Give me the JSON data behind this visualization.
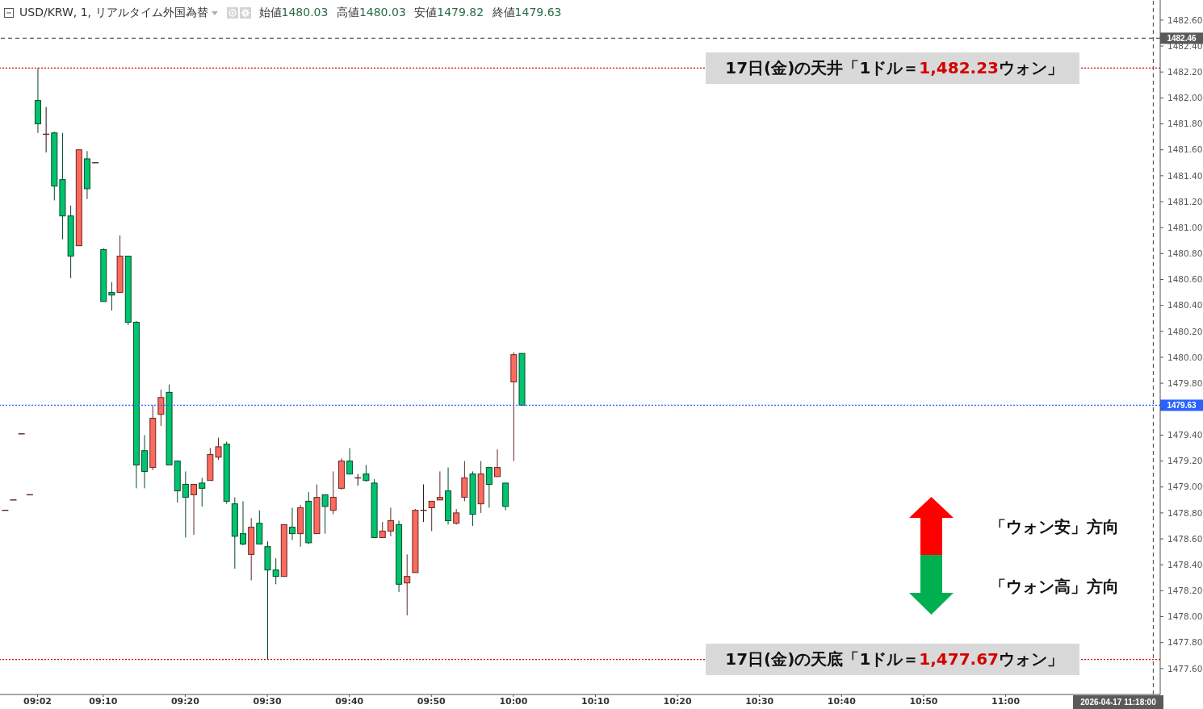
{
  "chart_data": {
    "type": "candlestick",
    "title": "USD/KRW, 1, リアルタイム外国為替",
    "subtitle": "始値1480.03 高値1480.03 安値1479.82 終値1479.63",
    "x": [
      8.9667,
      8.9833,
      9.0,
      9.0167,
      9.0333,
      9.05,
      9.0667,
      9.0833,
      9.1,
      9.1167,
      9.1333,
      9.15,
      9.1667,
      9.1833,
      9.2,
      9.2167,
      9.2333,
      9.25,
      9.2667,
      9.2833,
      9.3,
      9.3167,
      9.3333,
      9.35,
      9.3667,
      9.3833,
      9.4,
      9.4167,
      9.4333,
      9.45,
      9.4667,
      9.4833,
      9.5,
      9.5167,
      9.5333,
      9.55,
      9.5667,
      9.5833,
      9.6,
      9.6167,
      9.6333,
      9.65,
      9.6667,
      9.6833,
      9.7,
      9.7167,
      9.7333,
      9.75,
      9.7667,
      9.7833,
      9.8,
      9.8167,
      9.8333,
      9.85,
      9.8667,
      9.8833,
      9.9,
      9.9167,
      9.9333,
      9.95,
      9.9667,
      9.9833,
      10.0,
      10.0167
    ],
    "ohlc": [
      [
        1478.82,
        1478.82,
        1478.82,
        1478.82
      ],
      [
        1478.9,
        1478.9,
        1478.9,
        1478.9
      ],
      [
        1479.41,
        1479.41,
        1479.41,
        1479.41
      ],
      [
        1478.94,
        1478.94,
        1478.94,
        1478.94
      ],
      [
        1481.98,
        1482.23,
        1481.73,
        1481.8
      ],
      [
        1481.72,
        1481.93,
        1481.58,
        1481.72
      ],
      [
        1481.73,
        1481.74,
        1481.21,
        1481.32
      ],
      [
        1481.37,
        1481.73,
        1480.91,
        1481.09
      ],
      [
        1481.09,
        1481.17,
        1480.61,
        1480.78
      ],
      [
        1480.86,
        1481.6,
        1480.86,
        1481.6
      ],
      [
        1481.53,
        1481.59,
        1481.22,
        1481.3
      ],
      [
        1481.5,
        1481.5,
        1481.5,
        1481.5
      ],
      [
        1480.83,
        1480.84,
        1480.43,
        1480.43
      ],
      [
        1480.5,
        1480.58,
        1480.36,
        1480.48
      ],
      [
        1480.5,
        1480.94,
        1480.5,
        1480.78
      ],
      [
        1480.78,
        1480.78,
        1480.25,
        1480.27
      ],
      [
        1480.27,
        1480.28,
        1478.99,
        1479.17
      ],
      [
        1479.28,
        1479.4,
        1478.99,
        1479.12
      ],
      [
        1479.15,
        1479.63,
        1479.13,
        1479.53
      ],
      [
        1479.56,
        1479.75,
        1479.47,
        1479.69
      ],
      [
        1479.73,
        1479.79,
        1479.17,
        1479.17
      ],
      [
        1479.2,
        1479.2,
        1478.88,
        1478.97
      ],
      [
        1479.02,
        1479.12,
        1478.61,
        1478.92
      ],
      [
        1478.94,
        1479.02,
        1478.63,
        1479.02
      ],
      [
        1479.03,
        1479.07,
        1478.85,
        1478.99
      ],
      [
        1479.05,
        1479.3,
        1479.05,
        1479.25
      ],
      [
        1479.23,
        1479.38,
        1479.21,
        1479.31
      ],
      [
        1479.33,
        1479.35,
        1478.87,
        1478.89
      ],
      [
        1478.87,
        1478.92,
        1478.37,
        1478.62
      ],
      [
        1478.64,
        1478.89,
        1478.55,
        1478.56
      ],
      [
        1478.48,
        1478.76,
        1478.28,
        1478.69
      ],
      [
        1478.72,
        1478.82,
        1478.56,
        1478.56
      ],
      [
        1478.54,
        1478.58,
        1477.67,
        1478.36
      ],
      [
        1478.36,
        1478.45,
        1478.25,
        1478.31
      ],
      [
        1478.31,
        1478.71,
        1478.31,
        1478.71
      ],
      [
        1478.69,
        1478.84,
        1478.59,
        1478.64
      ],
      [
        1478.64,
        1478.86,
        1478.54,
        1478.84
      ],
      [
        1478.89,
        1478.96,
        1478.56,
        1478.57
      ],
      [
        1478.64,
        1479.02,
        1478.64,
        1478.92
      ],
      [
        1478.94,
        1478.94,
        1478.64,
        1478.85
      ],
      [
        1478.82,
        1479.12,
        1478.79,
        1478.92
      ],
      [
        1478.99,
        1479.22,
        1478.98,
        1479.2
      ],
      [
        1479.2,
        1479.3,
        1479.1,
        1479.1
      ],
      [
        1479.07,
        1479.1,
        1479.01,
        1479.07
      ],
      [
        1479.1,
        1479.17,
        1479.04,
        1479.05
      ],
      [
        1479.03,
        1479.06,
        1478.61,
        1478.61
      ],
      [
        1478.61,
        1478.73,
        1478.61,
        1478.66
      ],
      [
        1478.66,
        1478.84,
        1478.62,
        1478.74
      ],
      [
        1478.71,
        1478.74,
        1478.19,
        1478.25
      ],
      [
        1478.26,
        1478.48,
        1478.01,
        1478.31
      ],
      [
        1478.34,
        1478.83,
        1478.34,
        1478.82
      ],
      [
        1478.82,
        1479.02,
        1478.73,
        1478.82
      ],
      [
        1478.84,
        1478.89,
        1478.66,
        1478.89
      ],
      [
        1478.9,
        1479.12,
        1478.9,
        1478.92
      ],
      [
        1478.97,
        1479.15,
        1478.71,
        1478.74
      ],
      [
        1478.72,
        1478.83,
        1478.71,
        1478.8
      ],
      [
        1478.92,
        1479.2,
        1478.89,
        1479.07
      ],
      [
        1479.1,
        1479.12,
        1478.7,
        1478.79
      ],
      [
        1478.87,
        1479.2,
        1478.8,
        1479.1
      ],
      [
        1479.15,
        1479.15,
        1478.84,
        1479.02
      ],
      [
        1479.08,
        1479.29,
        1479.08,
        1479.15
      ],
      [
        1479.03,
        1479.03,
        1478.82,
        1478.85
      ],
      [
        1479.81,
        1480.04,
        1479.2,
        1480.02
      ],
      [
        1480.03,
        1480.03,
        1479.63,
        1479.63
      ]
    ],
    "colors": [
      "#5e2420",
      "#5e2420",
      "#5e2420",
      "#5e2420",
      "#00c46e",
      "#5e2420",
      "#00c46e",
      "#00c46e",
      "#00c46e",
      "#ff6a5e",
      "#00c46e",
      "#5e2420",
      "#00c46e",
      "#00c46e",
      "#ff6a5e",
      "#00c46e",
      "#00c46e",
      "#00c46e",
      "#ff6a5e",
      "#ff6a5e",
      "#00c46e",
      "#00c46e",
      "#00c46e",
      "#ff6a5e",
      "#00c46e",
      "#ff6a5e",
      "#ff6a5e",
      "#00c46e",
      "#00c46e",
      "#00c46e",
      "#ff6a5e",
      "#00c46e",
      "#00c46e",
      "#00c46e",
      "#ff6a5e",
      "#00c46e",
      "#ff6a5e",
      "#00c46e",
      "#ff6a5e",
      "#00c46e",
      "#ff6a5e",
      "#ff6a5e",
      "#00c46e",
      "#5e2420",
      "#00c46e",
      "#00c46e",
      "#ff6a5e",
      "#ff6a5e",
      "#00c46e",
      "#ff6a5e",
      "#ff6a5e",
      "#5e2420",
      "#ff6a5e",
      "#ff6a5e",
      "#00c46e",
      "#ff6a5e",
      "#ff6a5e",
      "#00c46e",
      "#ff6a5e",
      "#00c46e",
      "#ff6a5e",
      "#00c46e",
      "#ff6a5e",
      "#00c46e"
    ],
    "xlim": [
      8.957,
      11.314
    ],
    "xticks": [
      {
        "value": 9.0333,
        "label": "09:02"
      },
      {
        "value": 9.1667,
        "label": "09:10"
      },
      {
        "value": 9.3333,
        "label": "09:20"
      },
      {
        "value": 9.5,
        "label": "09:30"
      },
      {
        "value": 9.6667,
        "label": "09:40"
      },
      {
        "value": 9.8333,
        "label": "09:50"
      },
      {
        "value": 10.0,
        "label": "10:00"
      },
      {
        "value": 10.1667,
        "label": "10:10"
      },
      {
        "value": 10.3333,
        "label": "10:20"
      },
      {
        "value": 10.5,
        "label": "10:30"
      },
      {
        "value": 10.6667,
        "label": "10:40"
      },
      {
        "value": 10.8333,
        "label": "10:50"
      },
      {
        "value": 11.0,
        "label": "11:00"
      }
    ],
    "ylim": [
      1477.4,
      1482.755
    ],
    "yticks": [
      {
        "value": 1477.6,
        "label": "1477.60"
      },
      {
        "value": 1477.8,
        "label": "1477.80"
      },
      {
        "value": 1478.0,
        "label": "1478.00"
      },
      {
        "value": 1478.2,
        "label": "1478.20"
      },
      {
        "value": 1478.4,
        "label": "1478.40"
      },
      {
        "value": 1478.6,
        "label": "1478.60"
      },
      {
        "value": 1478.8,
        "label": "1478.80"
      },
      {
        "value": 1479.0,
        "label": "1479.00"
      },
      {
        "value": 1479.2,
        "label": "1479.20"
      },
      {
        "value": 1479.4,
        "label": "1479.40"
      },
      {
        "value": 1479.6,
        "label": null
      },
      {
        "value": 1479.8,
        "label": "1479.80"
      },
      {
        "value": 1480.0,
        "label": "1480.00"
      },
      {
        "value": 1480.2,
        "label": "1480.20"
      },
      {
        "value": 1480.4,
        "label": "1480.40"
      },
      {
        "value": 1480.6,
        "label": "1480.60"
      },
      {
        "value": 1480.8,
        "label": "1480.80"
      },
      {
        "value": 1481.0,
        "label": "1481.00"
      },
      {
        "value": 1481.2,
        "label": "1481.20"
      },
      {
        "value": 1481.4,
        "label": "1481.40"
      },
      {
        "value": 1481.6,
        "label": "1481.60"
      },
      {
        "value": 1481.8,
        "label": "1481.80"
      },
      {
        "value": 1482.0,
        "label": "1482.00"
      },
      {
        "value": 1482.2,
        "label": "1482.20"
      },
      {
        "value": 1482.4,
        "label": "1482.40"
      },
      {
        "value": 1482.6,
        "label": "1482.60"
      }
    ],
    "ref_lines": [
      {
        "axis": "y",
        "value": 1482.23,
        "color": "#e00000",
        "line_style": "dotted"
      },
      {
        "axis": "y",
        "value": 1477.67,
        "color": "#e00000",
        "line_style": "dotted"
      },
      {
        "axis": "y",
        "value": 1482.46,
        "label": "1482.46",
        "color": "#5a5a5a",
        "line_style": "dashed"
      },
      {
        "axis": "y",
        "value": 1479.63,
        "label": "1479.63",
        "color": "#2962ff",
        "line_style": "dotted"
      },
      {
        "axis": "x",
        "value": 11.3,
        "label": "2026-04-17 11:18:00",
        "color": "#5a5a5a",
        "line_style": "dashed"
      }
    ],
    "annotations": [
      "「ウォン安」方向",
      "「ウォン高」方向",
      {
        "text": "17日(金)の天井「1ドル＝1,482.23ウォン」",
        "y": 1482.23
      },
      {
        "text": "17日(金)の天底「1ドル＝1,477.67ウォン」",
        "y": 1477.67
      }
    ]
  }
}
